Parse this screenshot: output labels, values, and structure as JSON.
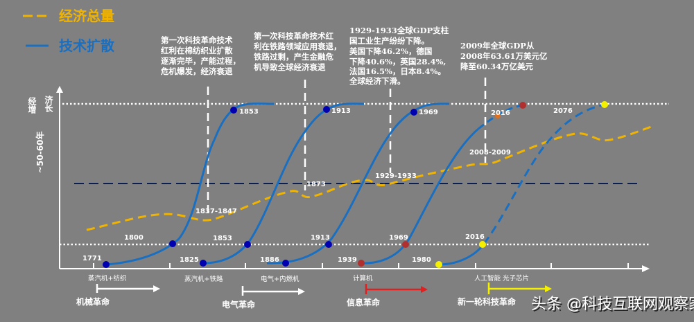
{
  "legend": [
    {
      "label": "经济总量",
      "color": "#f0b400",
      "style": "dashed"
    },
    {
      "label": "技术扩散",
      "color": "#1a6fc0",
      "style": "solid"
    }
  ],
  "y_axis": {
    "label_col1": "经增",
    "label_col2": "济长",
    "period": "~50-60年"
  },
  "annotations": [
    {
      "lines": [
        "第一次科技革命技术",
        "红利在棉纺织业扩散",
        "逐渐完毕，产能过程，",
        "危机爆发，经济衰退"
      ]
    },
    {
      "lines": [
        "第一次科技革命技术红",
        "利在铁路领域应用衰退，",
        "铁路过剩，产生金融危",
        "机导致全球经济衰退"
      ]
    },
    {
      "lines": [
        "1929-1933全球GDP支柱",
        "国工业生产纷纷下降。",
        "美国下降46.2%，德国",
        "下降40.6%，英国28.4%,",
        "法国16.5%，日本8.4%。",
        "全球经济下滑。"
      ]
    },
    {
      "lines": [
        "2009年全球GDP从",
        "2008年63.61万美元亿",
        "降至60.34万亿美元"
      ]
    }
  ],
  "point_labels": {
    "top": [
      "1853",
      "1913",
      "1969",
      "2016",
      "2076"
    ],
    "crises": [
      "1837-1847",
      "1873",
      "1929-1933",
      "2008-2009"
    ],
    "mid": [
      "1800",
      "1853",
      "1913",
      "1969",
      "2016"
    ],
    "start": [
      "1771",
      "1825",
      "1886",
      "1939",
      "1980"
    ]
  },
  "technologies": [
    "蒸汽机+纺织",
    "蒸汽机+铁路",
    "电气+内燃机",
    "计算机",
    "人工智能 光子芯片"
  ],
  "revolutions": [
    {
      "label": "机械革命",
      "color": "#ffffff"
    },
    {
      "label": "电气革命",
      "color": "#ffffff"
    },
    {
      "label": "信息革命",
      "color": "#e02020"
    },
    {
      "label": "新一轮科技革命",
      "color": "#f5f000"
    }
  ],
  "watermark": "头条 @科技互联网观察家",
  "colors": {
    "background": "#808080",
    "economy": "#f0b400",
    "diffusion": "#1a6fc0",
    "dot_blue": "#0000b0",
    "dot_red": "#b03030",
    "dot_orange": "#e07020",
    "dot_yellow": "#f5f000",
    "baseline": "#0a1e50"
  }
}
